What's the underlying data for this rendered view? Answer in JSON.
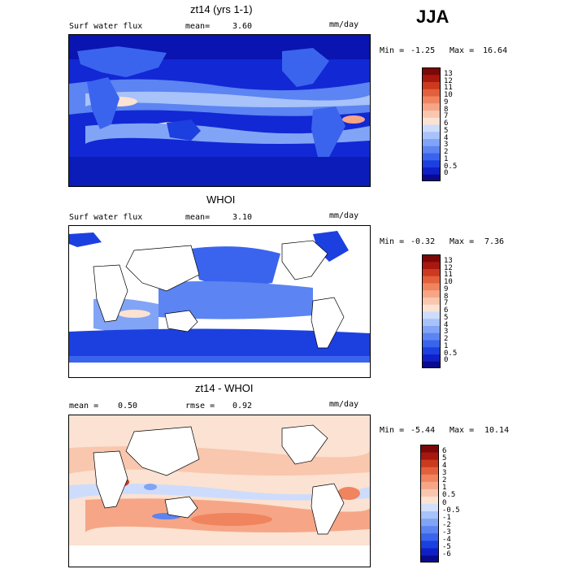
{
  "season": "JJA",
  "chart_data": [
    {
      "type": "heatmap",
      "title": "zt14 (yrs 1-1)",
      "field_label": "Surf water flux",
      "mean_label": "mean=",
      "mean": "3.60",
      "units": "mm/day",
      "min_label": "Min =",
      "min": "-1.25",
      "max_label": "Max =",
      "max": "16.64",
      "colorbar": {
        "ticks": [
          "0",
          "0.5",
          "1",
          "2",
          "3",
          "4",
          "5",
          "6",
          "7",
          "8",
          "9",
          "10",
          "11",
          "12",
          "13"
        ],
        "colors": [
          "#0a0a8c",
          "#1020c8",
          "#1c40e0",
          "#3a64ee",
          "#5c84f2",
          "#82a4f6",
          "#a8c2fa",
          "#cddcfc",
          "#fbe2d2",
          "#f9c6ae",
          "#f6a686",
          "#f0845e",
          "#e2603c",
          "#cc3a1e",
          "#a81810",
          "#7c0808"
        ]
      }
    },
    {
      "type": "heatmap",
      "title": "WHOI",
      "field_label": "Surf water flux",
      "mean_label": "mean=",
      "mean": "3.10",
      "units": "mm/day",
      "min_label": "Min =",
      "min": "-0.32",
      "max_label": "Max =",
      "max": "7.36",
      "colorbar": {
        "ticks": [
          "0",
          "0.5",
          "1",
          "2",
          "3",
          "4",
          "5",
          "6",
          "7",
          "8",
          "9",
          "10",
          "11",
          "12",
          "13"
        ],
        "colors": [
          "#0a0a8c",
          "#1020c8",
          "#1c40e0",
          "#3a64ee",
          "#5c84f2",
          "#82a4f6",
          "#a8c2fa",
          "#cddcfc",
          "#fbe2d2",
          "#f9c6ae",
          "#f6a686",
          "#f0845e",
          "#e2603c",
          "#cc3a1e",
          "#a81810",
          "#7c0808"
        ]
      }
    },
    {
      "type": "heatmap",
      "title": "zt14 - WHOI",
      "mean_label": "mean =",
      "mean": "0.50",
      "rmse_label": "rmse =",
      "rmse": "0.92",
      "units": "mm/day",
      "min_label": "Min =",
      "min": "-5.44",
      "max_label": "Max =",
      "max": "10.14",
      "colorbar": {
        "ticks": [
          "-6",
          "-5",
          "-4",
          "-3",
          "-2",
          "-1",
          "-0.5",
          "0",
          "0.5",
          "1",
          "2",
          "3",
          "4",
          "5",
          "6"
        ],
        "colors": [
          "#0a0a8c",
          "#1020c8",
          "#1c40e0",
          "#3a64ee",
          "#5c84f2",
          "#82a4f6",
          "#a8c2fa",
          "#d2e0fc",
          "#fbe2d2",
          "#f9c6ae",
          "#f6a686",
          "#f0845e",
          "#e2603c",
          "#cc3a1e",
          "#a81810",
          "#7c0808"
        ]
      }
    }
  ]
}
